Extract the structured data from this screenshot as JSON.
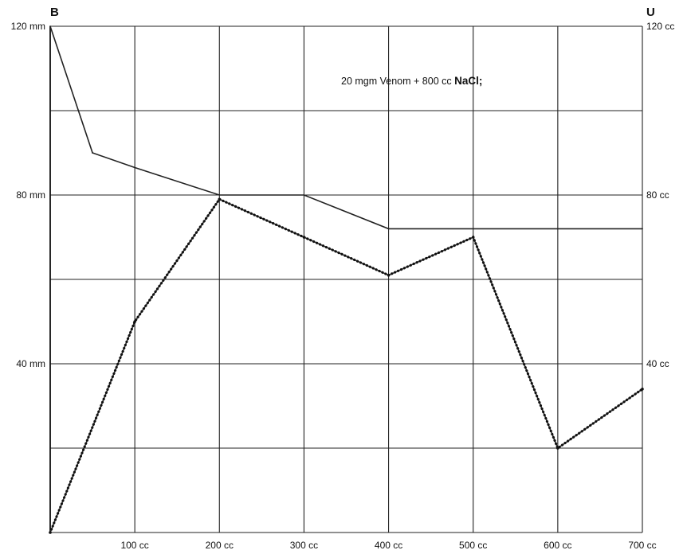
{
  "chart_data": {
    "type": "line",
    "x": [
      0,
      50,
      100,
      200,
      300,
      400,
      500,
      600,
      700
    ],
    "x_ticks": [
      "100 cc",
      "200 cc",
      "300 cc",
      "400 cc",
      "500 cc",
      "600 cc",
      "700 cc"
    ],
    "xlim": [
      0,
      700
    ],
    "left_axis": {
      "letter": "B",
      "ticks": [
        "40 mm",
        "80 mm",
        "120 mm"
      ],
      "ylim": [
        0,
        120
      ]
    },
    "right_axis": {
      "letter": "U",
      "ticks": [
        "40 cc",
        "80 cc",
        "120 cc"
      ],
      "ylim": [
        0,
        120
      ]
    },
    "annotation": {
      "text": "20 mgm Venom + 800 cc ",
      "bold": "NaCl;"
    },
    "series": [
      {
        "style": "solid",
        "axis": "left",
        "points": [
          [
            0,
            120
          ],
          [
            50,
            90
          ],
          [
            100,
            86.5
          ],
          [
            200,
            80
          ],
          [
            300,
            80
          ],
          [
            400,
            72
          ],
          [
            500,
            72
          ],
          [
            600,
            72
          ],
          [
            700,
            72
          ]
        ]
      },
      {
        "style": "dotted",
        "axis": "right",
        "points": [
          [
            0,
            0
          ],
          [
            100,
            50
          ],
          [
            200,
            79
          ],
          [
            300,
            70
          ],
          [
            400,
            61
          ],
          [
            500,
            70
          ],
          [
            600,
            20
          ],
          [
            700,
            34
          ]
        ]
      }
    ],
    "grid": true
  }
}
